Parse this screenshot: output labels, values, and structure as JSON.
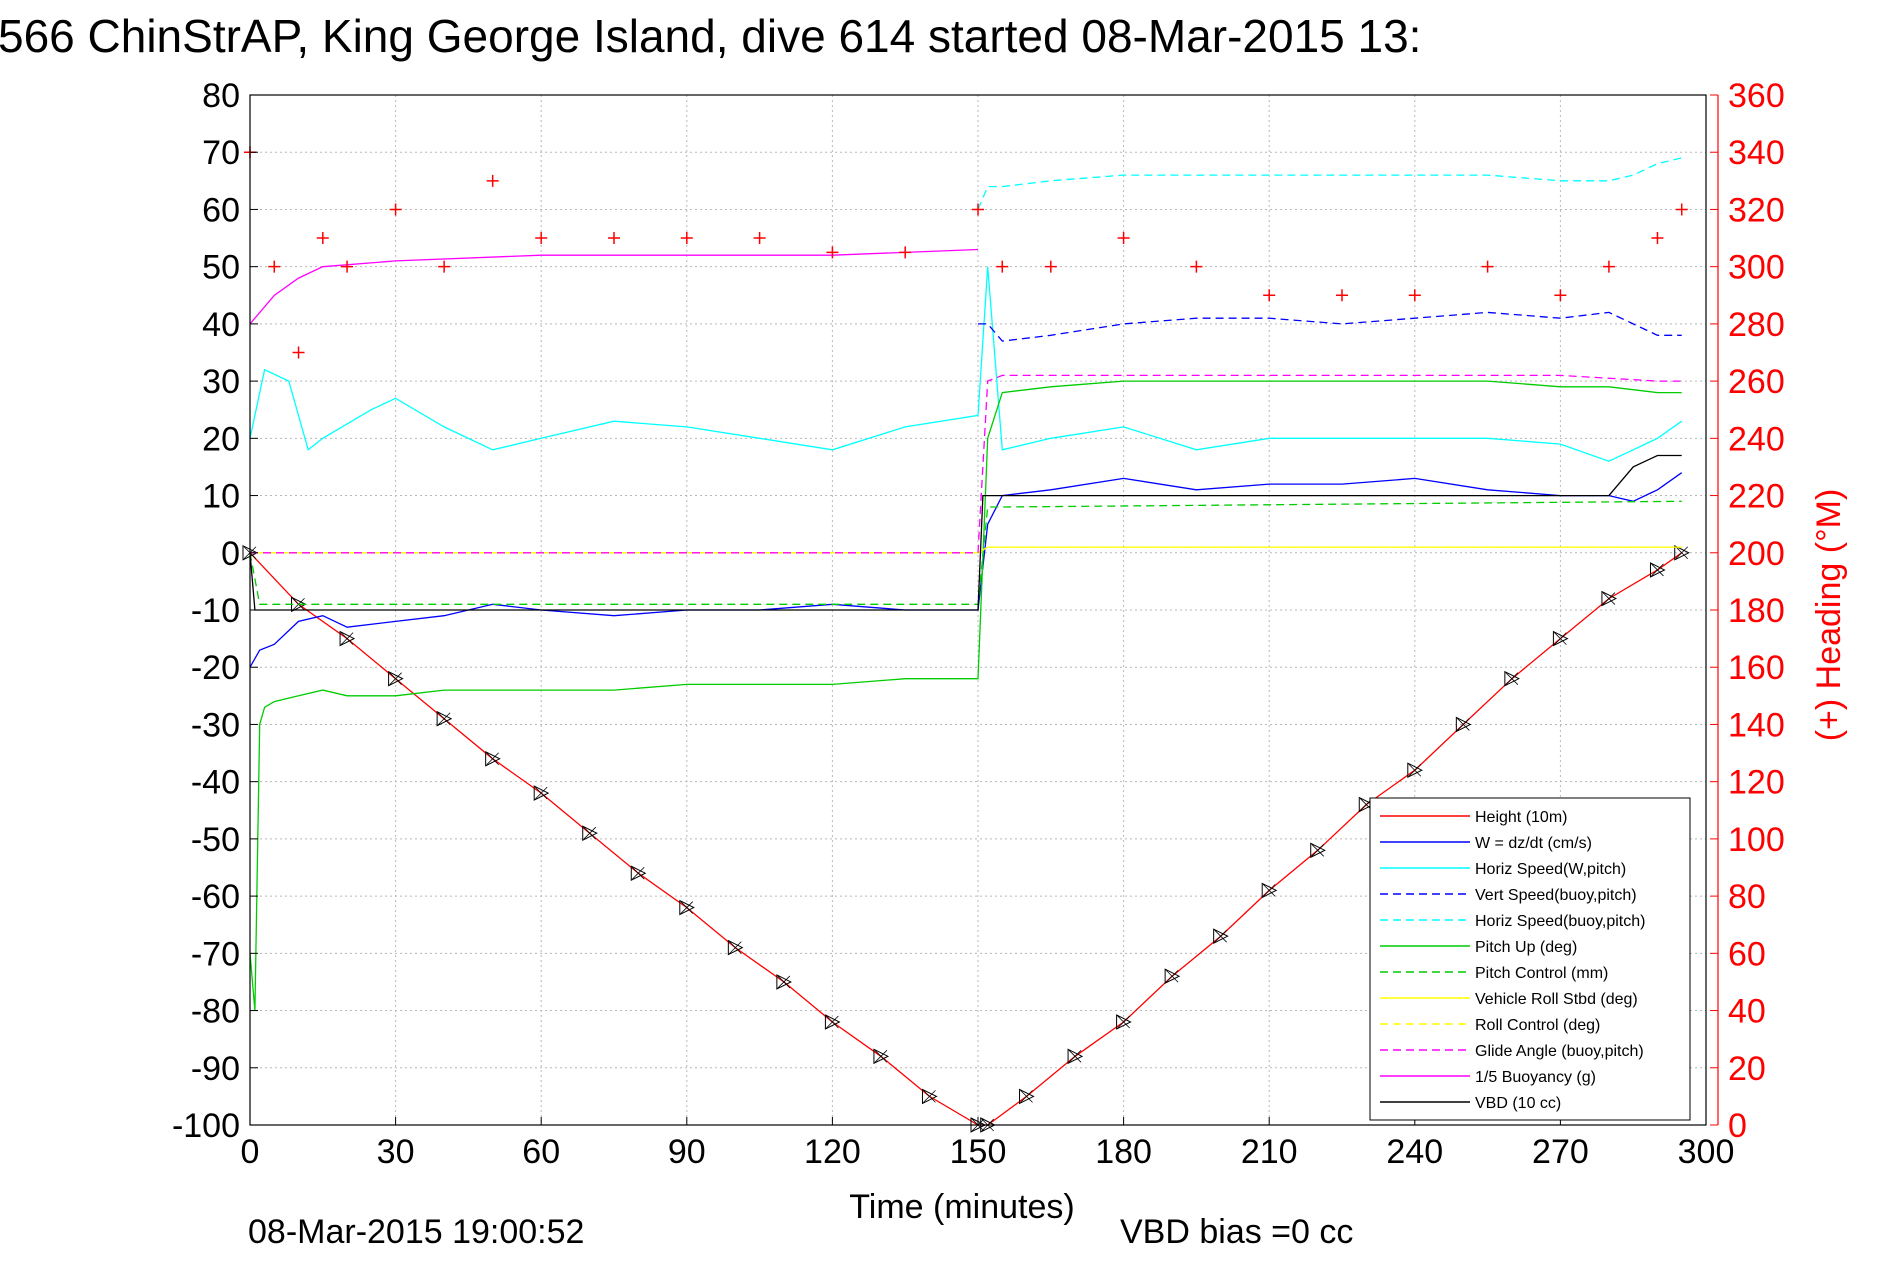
{
  "chart_data": {
    "type": "line",
    "title": "566 ChinStrAP, King George Island, dive 614 started 08-Mar-2015 13:",
    "xlabel": "Time (minutes)",
    "ylabel": "",
    "y2label": "(+) Heading (°M)",
    "xlim": [
      0,
      300
    ],
    "ylim": [
      -100,
      80
    ],
    "y2lim": [
      0,
      360
    ],
    "x_ticks": [
      0,
      30,
      60,
      90,
      120,
      150,
      180,
      210,
      240,
      270,
      300
    ],
    "y_ticks": [
      -100,
      -90,
      -80,
      -70,
      -60,
      -50,
      -40,
      -30,
      -20,
      -10,
      0,
      10,
      20,
      30,
      40,
      50,
      60,
      70,
      80
    ],
    "y2_ticks": [
      0,
      20,
      40,
      60,
      80,
      100,
      120,
      140,
      160,
      180,
      200,
      220,
      240,
      260,
      280,
      300,
      320,
      340,
      360
    ],
    "grid": true,
    "legend_position": "bottom-right",
    "footer_left": "08-Mar-2015 19:00:52",
    "footer_right": "VBD bias =0 cc",
    "colors": {
      "axis_right": "#ff0000",
      "heading_marker": "#ff0000"
    },
    "series": [
      {
        "name": "Height (10m)",
        "color": "#ff0000",
        "dash": "solid",
        "markers": "triangle-x",
        "x": [
          0,
          10,
          20,
          30,
          40,
          50,
          60,
          70,
          80,
          90,
          100,
          110,
          120,
          130,
          140,
          150,
          152,
          160,
          170,
          180,
          190,
          200,
          210,
          220,
          230,
          240,
          250,
          260,
          270,
          280,
          290,
          295
        ],
        "values": [
          0,
          -9,
          -15,
          -22,
          -29,
          -36,
          -42,
          -49,
          -56,
          -62,
          -69,
          -75,
          -82,
          -88,
          -95,
          -100,
          -100,
          -95,
          -88,
          -82,
          -74,
          -67,
          -59,
          -52,
          -44,
          -38,
          -30,
          -22,
          -15,
          -8,
          -3,
          0
        ]
      },
      {
        "name": "W = dz/dt (cm/s)",
        "color": "#0000ff",
        "dash": "solid",
        "x": [
          0,
          2,
          5,
          10,
          15,
          20,
          30,
          40,
          50,
          60,
          75,
          90,
          105,
          120,
          135,
          150,
          152,
          155,
          165,
          180,
          195,
          210,
          225,
          240,
          255,
          270,
          280,
          285,
          290,
          295
        ],
        "values": [
          -20,
          -17,
          -16,
          -12,
          -11,
          -13,
          -12,
          -11,
          -9,
          -10,
          -11,
          -10,
          -10,
          -9,
          -10,
          -10,
          5,
          10,
          11,
          13,
          11,
          12,
          12,
          13,
          11,
          10,
          10,
          9,
          11,
          14
        ]
      },
      {
        "name": "Horiz Speed(W,pitch)",
        "color": "#00ffff",
        "dash": "solid",
        "x": [
          0,
          3,
          8,
          12,
          15,
          25,
          30,
          40,
          50,
          60,
          75,
          90,
          105,
          120,
          135,
          150,
          152,
          155,
          165,
          180,
          195,
          210,
          225,
          240,
          255,
          270,
          280,
          285,
          290,
          295
        ],
        "values": [
          20,
          32,
          30,
          18,
          20,
          25,
          27,
          22,
          18,
          20,
          23,
          22,
          20,
          18,
          22,
          24,
          50,
          18,
          20,
          22,
          18,
          20,
          20,
          20,
          20,
          19,
          16,
          18,
          20,
          23
        ]
      },
      {
        "name": "Vert Speed(buoy,pitch)",
        "color": "#0000ff",
        "dash": "dashed",
        "x": [
          150,
          152,
          155,
          165,
          180,
          195,
          210,
          225,
          240,
          255,
          270,
          280,
          285,
          290,
          295
        ],
        "values": [
          40,
          40,
          37,
          38,
          40,
          41,
          41,
          40,
          41,
          42,
          41,
          42,
          40,
          38,
          38
        ]
      },
      {
        "name": "Horiz Speed(buoy,pitch)",
        "color": "#00ffff",
        "dash": "dashed",
        "x": [
          150,
          152,
          155,
          165,
          180,
          195,
          210,
          225,
          240,
          255,
          270,
          280,
          285,
          290,
          295
        ],
        "values": [
          60,
          64,
          64,
          65,
          66,
          66,
          66,
          66,
          66,
          66,
          65,
          65,
          66,
          68,
          69
        ]
      },
      {
        "name": "Pitch Up (deg)",
        "color": "#00cc00",
        "dash": "solid",
        "x": [
          0,
          1,
          2,
          3,
          5,
          10,
          15,
          20,
          30,
          40,
          50,
          60,
          75,
          90,
          105,
          120,
          135,
          150,
          152,
          155,
          165,
          180,
          195,
          210,
          225,
          240,
          255,
          270,
          280,
          290,
          295
        ],
        "values": [
          -70,
          -80,
          -30,
          -27,
          -26,
          -25,
          -24,
          -25,
          -25,
          -24,
          -24,
          -24,
          -24,
          -23,
          -23,
          -23,
          -22,
          -22,
          20,
          28,
          29,
          30,
          30,
          30,
          30,
          30,
          30,
          29,
          29,
          28,
          28
        ]
      },
      {
        "name": "Pitch Control (mm)",
        "color": "#00cc00",
        "dash": "dashed",
        "x": [
          0,
          2,
          5,
          150,
          152,
          155,
          295
        ],
        "values": [
          0,
          -9,
          -9,
          -9,
          8,
          8,
          9
        ]
      },
      {
        "name": "Vehicle Roll Stbd (deg)",
        "color": "#ffff00",
        "dash": "solid",
        "x": [
          0,
          2,
          5,
          150,
          152,
          155,
          295
        ],
        "values": [
          0,
          0,
          0,
          0,
          1,
          1,
          1
        ]
      },
      {
        "name": "Roll Control (deg)",
        "color": "#ffff00",
        "dash": "dashed",
        "x": [
          0,
          2,
          5,
          150,
          152,
          155,
          295
        ],
        "values": [
          0,
          0,
          0,
          0,
          1,
          1,
          1
        ]
      },
      {
        "name": "Glide Angle (buoy,pitch)",
        "color": "#ff00ff",
        "dash": "dashed",
        "x": [
          0,
          2,
          150,
          152,
          155,
          180,
          210,
          240,
          270,
          290,
          295
        ],
        "values": [
          0,
          0,
          0,
          30,
          31,
          31,
          31,
          31,
          31,
          30,
          30
        ]
      },
      {
        "name": "1/5 Buoyancy (g)",
        "color": "#ff00ff",
        "dash": "solid",
        "x": [
          0,
          5,
          10,
          15,
          30,
          60,
          90,
          120,
          150
        ],
        "values": [
          40,
          45,
          48,
          50,
          51,
          52,
          52,
          52,
          53
        ]
      },
      {
        "name": "VBD (10 cc)",
        "color": "#000000",
        "dash": "solid",
        "x": [
          0,
          1,
          2,
          150,
          151,
          152,
          155,
          200,
          250,
          270,
          280,
          285,
          290,
          295
        ],
        "values": [
          0,
          -10,
          -10,
          -10,
          10,
          10,
          10,
          10,
          10,
          10,
          10,
          15,
          17,
          17
        ]
      },
      {
        "name": "(+) Heading (°M)",
        "axis": "right",
        "color": "#ff0000",
        "markers": "plus",
        "x": [
          0,
          5,
          10,
          15,
          20,
          30,
          40,
          50,
          60,
          75,
          90,
          105,
          120,
          135,
          150,
          155,
          165,
          180,
          195,
          210,
          225,
          240,
          255,
          270,
          280,
          290,
          295
        ],
        "values": [
          340,
          300,
          270,
          310,
          300,
          320,
          300,
          330,
          310,
          310,
          310,
          310,
          305,
          305,
          320,
          300,
          300,
          310,
          300,
          290,
          290,
          290,
          300,
          290,
          300,
          310,
          320
        ]
      }
    ]
  }
}
